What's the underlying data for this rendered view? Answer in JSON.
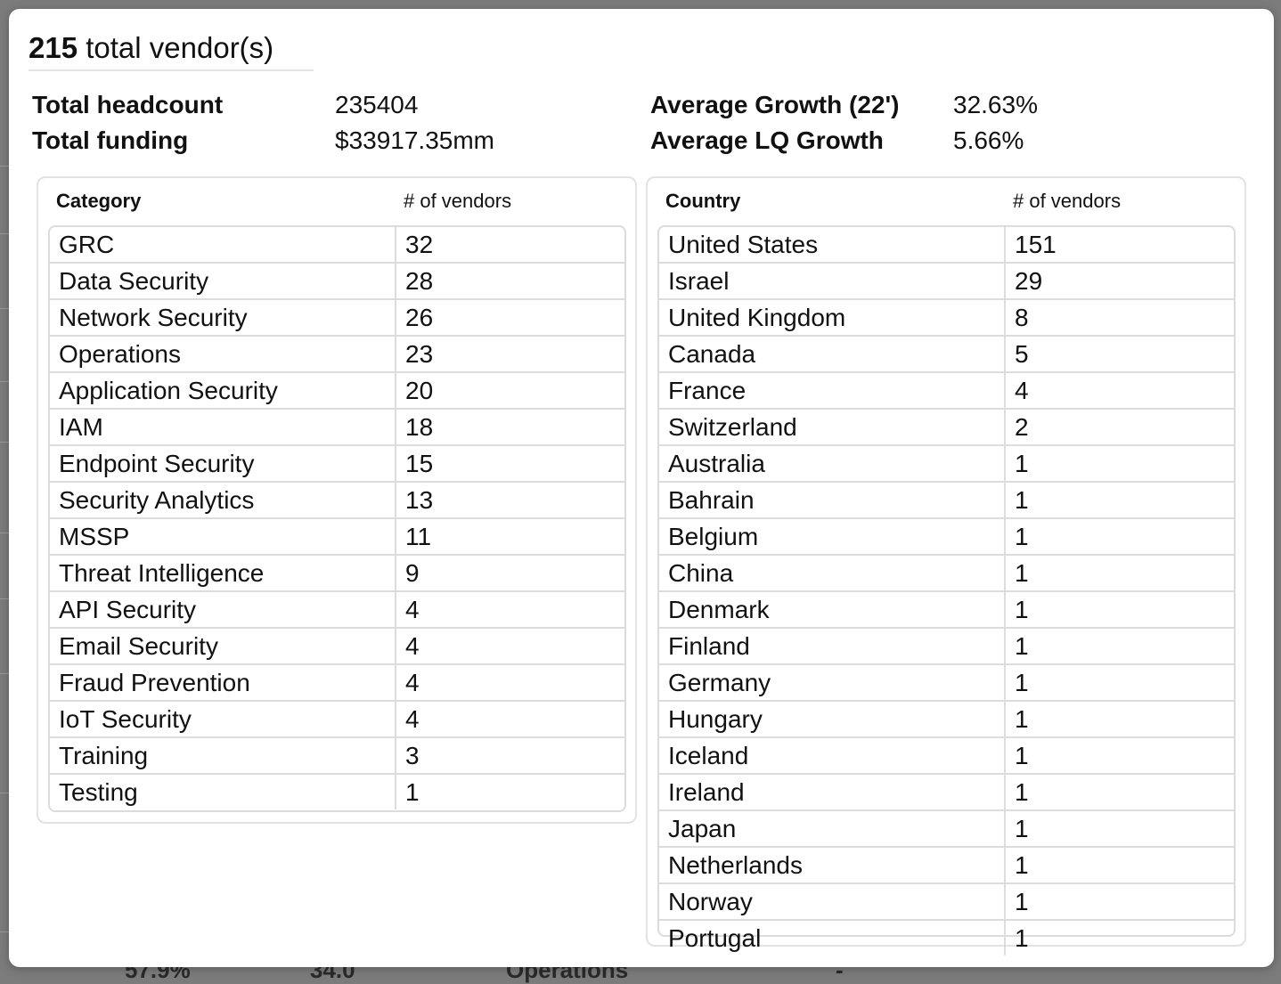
{
  "summary": {
    "total_count": "215",
    "total_label": "total vendor(s)"
  },
  "stats": {
    "headcount_label": "Total headcount",
    "headcount_value": "235404",
    "funding_label": "Total funding",
    "funding_value": "$33917.35mm",
    "growth_label": "Average Growth (22')",
    "growth_value": "32.63%",
    "lq_growth_label": "Average LQ Growth",
    "lq_growth_value": "5.66%"
  },
  "category_table": {
    "header_name": "Category",
    "header_count": "# of vendors",
    "rows": [
      {
        "name": "GRC",
        "count": "32"
      },
      {
        "name": "Data Security",
        "count": "28"
      },
      {
        "name": "Network Security",
        "count": "26"
      },
      {
        "name": "Operations",
        "count": "23"
      },
      {
        "name": "Application Security",
        "count": "20"
      },
      {
        "name": "IAM",
        "count": "18"
      },
      {
        "name": "Endpoint Security",
        "count": "15"
      },
      {
        "name": "Security Analytics",
        "count": "13"
      },
      {
        "name": "MSSP",
        "count": "11"
      },
      {
        "name": "Threat Intelligence",
        "count": "9"
      },
      {
        "name": "API Security",
        "count": "4"
      },
      {
        "name": "Email Security",
        "count": "4"
      },
      {
        "name": "Fraud Prevention",
        "count": "4"
      },
      {
        "name": "IoT Security",
        "count": "4"
      },
      {
        "name": "Training",
        "count": "3"
      },
      {
        "name": "Testing",
        "count": "1"
      }
    ]
  },
  "country_table": {
    "header_name": "Country",
    "header_count": "# of vendors",
    "rows": [
      {
        "name": "United States",
        "count": "151"
      },
      {
        "name": "Israel",
        "count": "29"
      },
      {
        "name": "United Kingdom",
        "count": "8"
      },
      {
        "name": "Canada",
        "count": "5"
      },
      {
        "name": "France",
        "count": "4"
      },
      {
        "name": "Switzerland",
        "count": "2"
      },
      {
        "name": "Australia",
        "count": "1"
      },
      {
        "name": "Bahrain",
        "count": "1"
      },
      {
        "name": "Belgium",
        "count": "1"
      },
      {
        "name": "China",
        "count": "1"
      },
      {
        "name": "Denmark",
        "count": "1"
      },
      {
        "name": "Finland",
        "count": "1"
      },
      {
        "name": "Germany",
        "count": "1"
      },
      {
        "name": "Hungary",
        "count": "1"
      },
      {
        "name": "Iceland",
        "count": "1"
      },
      {
        "name": "Ireland",
        "count": "1"
      },
      {
        "name": "Japan",
        "count": "1"
      },
      {
        "name": "Netherlands",
        "count": "1"
      },
      {
        "name": "Norway",
        "count": "1"
      },
      {
        "name": "Portugal",
        "count": "1"
      }
    ]
  },
  "background": {
    "fragment_1": "57.9%",
    "fragment_2": "34.0",
    "fragment_3": "Operations",
    "fragment_4": "-"
  }
}
